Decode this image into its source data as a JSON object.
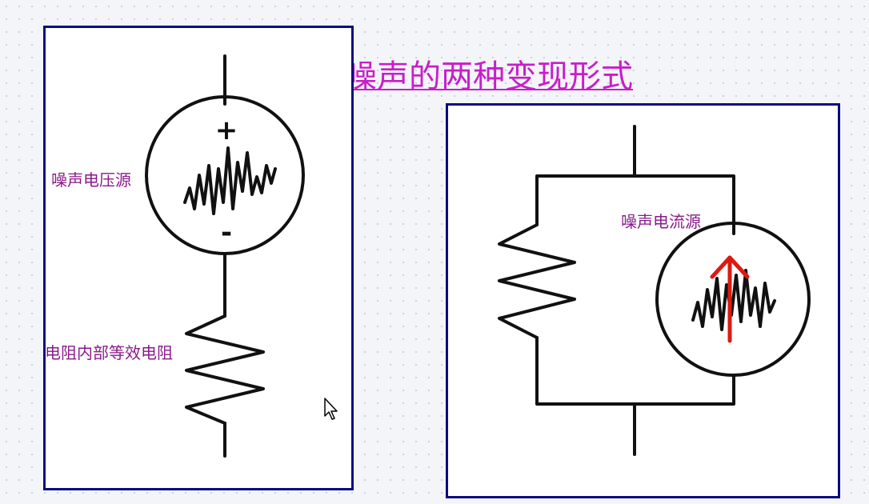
{
  "title": "噪声的两种变现形式",
  "left_panel": {
    "source_label": "噪声电压源",
    "resistor_label": "电阻内部等效电阻",
    "plus_sign": "+",
    "minus_sign": "-"
  },
  "right_panel": {
    "source_label": "噪声电流源"
  },
  "colors": {
    "title": "#c81ec8",
    "labels": "#8a1a8a",
    "panel_border": "#0a0a80",
    "arrow": "#dd1a10",
    "wire": "#111111"
  },
  "icons": {
    "cursor": "mouse-pointer-icon"
  }
}
